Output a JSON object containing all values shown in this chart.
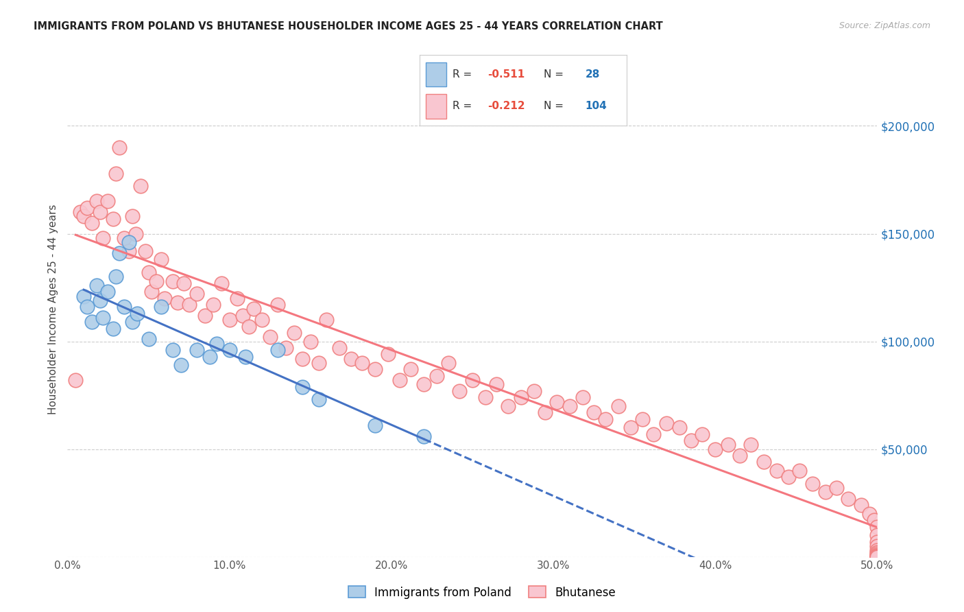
{
  "title": "IMMIGRANTS FROM POLAND VS BHUTANESE HOUSEHOLDER INCOME AGES 25 - 44 YEARS CORRELATION CHART",
  "source": "Source: ZipAtlas.com",
  "ylabel": "Householder Income Ages 25 - 44 years",
  "legend_label_blue": "Immigrants from Poland",
  "legend_label_pink": "Bhutanese",
  "blue_fill": "#aecde8",
  "blue_edge": "#5b9bd5",
  "pink_fill": "#f9c6d0",
  "pink_edge": "#f08080",
  "trend_blue": "#4472c4",
  "trend_pink": "#f4777f",
  "r_color": "#e74c3c",
  "n_color": "#2171b5",
  "yaxis_color": "#2171b5",
  "xmin": 0.0,
  "xmax": 0.5,
  "ymin": 0,
  "ymax": 230000,
  "ytick_vals": [
    0,
    50000,
    100000,
    150000,
    200000
  ],
  "ytick_labels": [
    "",
    "$50,000",
    "$100,000",
    "$150,000",
    "$200,000"
  ],
  "xtick_vals": [
    0.0,
    0.1,
    0.2,
    0.3,
    0.4,
    0.5
  ],
  "xtick_labels": [
    "0.0%",
    "10.0%",
    "20.0%",
    "30.0%",
    "40.0%",
    "50.0%"
  ],
  "blue_x": [
    0.01,
    0.012,
    0.015,
    0.018,
    0.02,
    0.022,
    0.025,
    0.028,
    0.03,
    0.032,
    0.035,
    0.038,
    0.04,
    0.043,
    0.05,
    0.058,
    0.065,
    0.07,
    0.08,
    0.088,
    0.092,
    0.1,
    0.11,
    0.13,
    0.145,
    0.155,
    0.19,
    0.22
  ],
  "blue_y": [
    121000,
    116000,
    109000,
    126000,
    119000,
    111000,
    123000,
    106000,
    130000,
    141000,
    116000,
    146000,
    109000,
    113000,
    101000,
    116000,
    96000,
    89000,
    96000,
    93000,
    99000,
    96000,
    93000,
    96000,
    79000,
    73000,
    61000,
    56000
  ],
  "pink_x": [
    0.005,
    0.008,
    0.01,
    0.012,
    0.015,
    0.018,
    0.02,
    0.022,
    0.025,
    0.028,
    0.03,
    0.032,
    0.035,
    0.038,
    0.04,
    0.042,
    0.045,
    0.048,
    0.05,
    0.052,
    0.055,
    0.058,
    0.06,
    0.065,
    0.068,
    0.072,
    0.075,
    0.08,
    0.085,
    0.09,
    0.095,
    0.1,
    0.105,
    0.108,
    0.112,
    0.115,
    0.12,
    0.125,
    0.13,
    0.135,
    0.14,
    0.145,
    0.15,
    0.155,
    0.16,
    0.168,
    0.175,
    0.182,
    0.19,
    0.198,
    0.205,
    0.212,
    0.22,
    0.228,
    0.235,
    0.242,
    0.25,
    0.258,
    0.265,
    0.272,
    0.28,
    0.288,
    0.295,
    0.302,
    0.31,
    0.318,
    0.325,
    0.332,
    0.34,
    0.348,
    0.355,
    0.362,
    0.37,
    0.378,
    0.385,
    0.392,
    0.4,
    0.408,
    0.415,
    0.422,
    0.43,
    0.438,
    0.445,
    0.452,
    0.46,
    0.468,
    0.475,
    0.482,
    0.49,
    0.495,
    0.498,
    0.5,
    0.5,
    0.5,
    0.5,
    0.5,
    0.5,
    0.5,
    0.5,
    0.5,
    0.5,
    0.5,
    0.5,
    0.5
  ],
  "pink_y": [
    82000,
    160000,
    158000,
    162000,
    155000,
    165000,
    160000,
    148000,
    165000,
    157000,
    178000,
    190000,
    148000,
    142000,
    158000,
    150000,
    172000,
    142000,
    132000,
    123000,
    128000,
    138000,
    120000,
    128000,
    118000,
    127000,
    117000,
    122000,
    112000,
    117000,
    127000,
    110000,
    120000,
    112000,
    107000,
    115000,
    110000,
    102000,
    117000,
    97000,
    104000,
    92000,
    100000,
    90000,
    110000,
    97000,
    92000,
    90000,
    87000,
    94000,
    82000,
    87000,
    80000,
    84000,
    90000,
    77000,
    82000,
    74000,
    80000,
    70000,
    74000,
    77000,
    67000,
    72000,
    70000,
    74000,
    67000,
    64000,
    70000,
    60000,
    64000,
    57000,
    62000,
    60000,
    54000,
    57000,
    50000,
    52000,
    47000,
    52000,
    44000,
    40000,
    37000,
    40000,
    34000,
    30000,
    32000,
    27000,
    24000,
    20000,
    17000,
    14000,
    10000,
    7000,
    5000,
    3000,
    2000,
    1500,
    1000,
    500,
    300,
    200,
    100,
    50
  ]
}
